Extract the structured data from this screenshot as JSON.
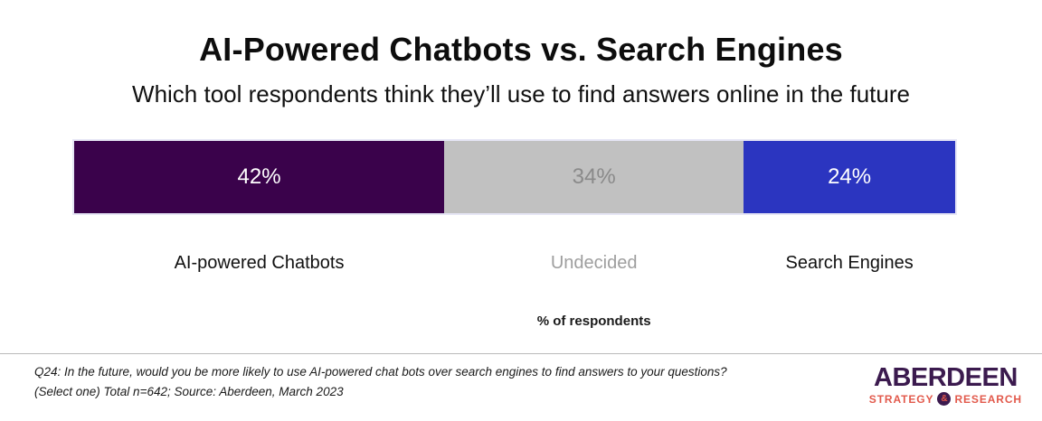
{
  "header": {
    "title": "AI-Powered Chatbots vs. Search Engines",
    "subtitle": "Which tool respondents think they’ll use to find answers online in the future"
  },
  "chart_data": {
    "type": "bar",
    "variant": "horizontal-stacked-100",
    "title": "AI-Powered Chatbots vs. Search Engines",
    "subtitle": "Which tool respondents think they’ll use to find answers online in the future",
    "xlabel": "% of respondents",
    "total_n": 642,
    "categories": [
      "AI-powered Chatbots",
      "Undecided",
      "Search Engines"
    ],
    "values": [
      42,
      34,
      24
    ],
    "segments": [
      {
        "label": "AI-powered Chatbots",
        "value": 42,
        "display": "42%",
        "color": "#3A024B",
        "value_text_color": "#FFFFFF",
        "label_color": "#111111"
      },
      {
        "label": "Undecided",
        "value": 34,
        "display": "34%",
        "color": "#C1C1C1",
        "value_text_color": "#8A8A8A",
        "label_color": "#9E9E9E"
      },
      {
        "label": "Search Engines",
        "value": 24,
        "display": "24%",
        "color": "#2B35C0",
        "value_text_color": "#FFFFFF",
        "label_color": "#111111"
      }
    ],
    "axis_label_color": "#1A1A1A",
    "legend": "none",
    "grid": "off"
  },
  "footer": {
    "note_line1": "Q24: In the future, would you be more likely to use AI-powered chat bots over search engines to find answers to your questions?",
    "note_line2": "(Select one) Total n=642; Source: Aberdeen, March 2023",
    "logo": {
      "name": "ABERDEEN",
      "sub_left": "STRATEGY",
      "amp": "&",
      "sub_right": "RESEARCH",
      "purple": "#3B1A4E",
      "coral": "#E2594B"
    }
  }
}
